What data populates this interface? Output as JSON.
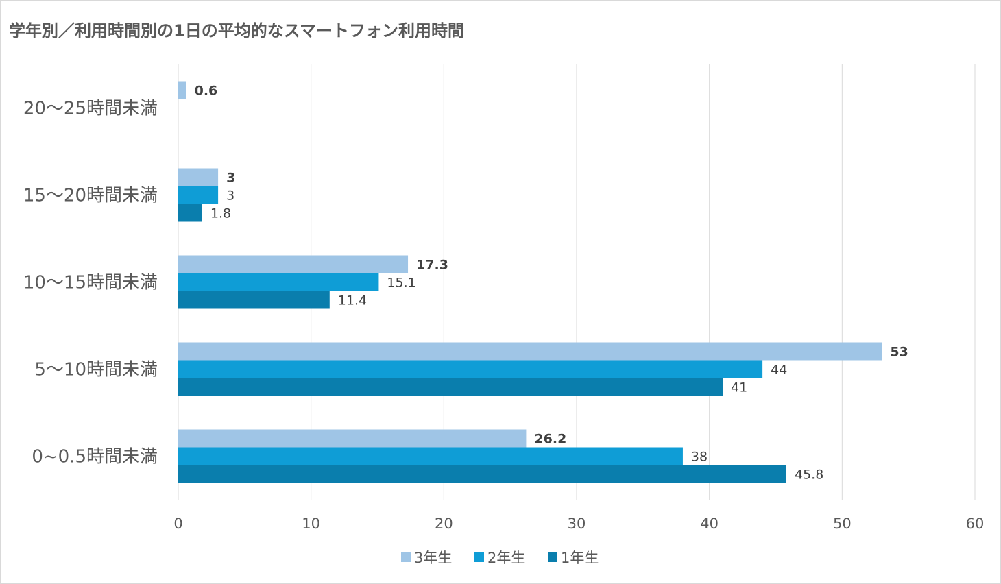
{
  "chart_data": {
    "type": "bar",
    "orientation": "horizontal",
    "title": "学年別／利用時間別の1日の平均的なスマートフォン利用時間",
    "categories": [
      "20～25時間未満",
      "15～20時間未満",
      "10～15時間未満",
      "5～10時間未満",
      "0~0.5時間未満"
    ],
    "series": [
      {
        "name": "3年生",
        "color": "#9FC5E6",
        "values": [
          0.6,
          3,
          17.3,
          53,
          26.2
        ],
        "bold_labels": true
      },
      {
        "name": "2年生",
        "color": "#0F9DD6",
        "values": [
          null,
          3,
          15.1,
          44,
          38
        ]
      },
      {
        "name": "1年生",
        "color": "#0A7EAD",
        "values": [
          null,
          1.8,
          11.4,
          41,
          45.8
        ]
      }
    ],
    "xlim": [
      0,
      60
    ],
    "xticks": [
      0,
      10,
      20,
      30,
      40,
      50,
      60
    ],
    "grid": true,
    "legend": "bottom",
    "xlabel": "",
    "ylabel": ""
  }
}
